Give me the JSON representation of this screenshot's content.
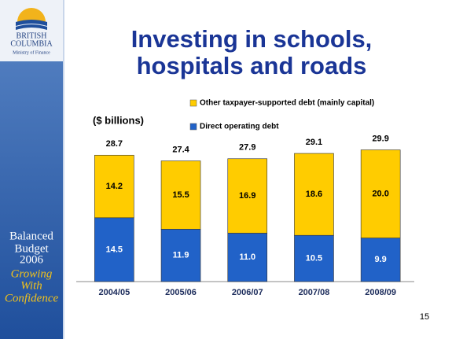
{
  "logo": {
    "line1": "BRITISH",
    "line2": "COLUMBIA",
    "ministry": "Ministry of Finance"
  },
  "budget": [
    "Balanced",
    "Budget",
    "2006"
  ],
  "tagline": [
    "Growing",
    "With",
    "Confidence"
  ],
  "page_number": "15",
  "chart_data": {
    "type": "stacked-bar",
    "title": [
      "Investing in schools,",
      "hospitals and roads"
    ],
    "unit_label": "($ billions)",
    "categories": [
      "2004/05",
      "2005/06",
      "2006/07",
      "2007/08",
      "2008/09"
    ],
    "series": [
      {
        "name": "Direct operating debt",
        "color": "#2162c8",
        "values": [
          14.5,
          11.9,
          11.0,
          10.5,
          9.9
        ],
        "value_labels": [
          "14.5",
          "11.9",
          "11.0",
          "10.5",
          "9.9"
        ]
      },
      {
        "name": "Other taxpayer-supported debt (mainly capital)",
        "color": "#ffcc00",
        "values": [
          14.2,
          15.5,
          16.9,
          18.6,
          20.0
        ],
        "value_labels": [
          "14.2",
          "15.5",
          "16.9",
          "18.6",
          "20.0"
        ]
      }
    ],
    "totals": [
      28.7,
      27.4,
      27.9,
      29.1,
      29.9
    ]
  }
}
